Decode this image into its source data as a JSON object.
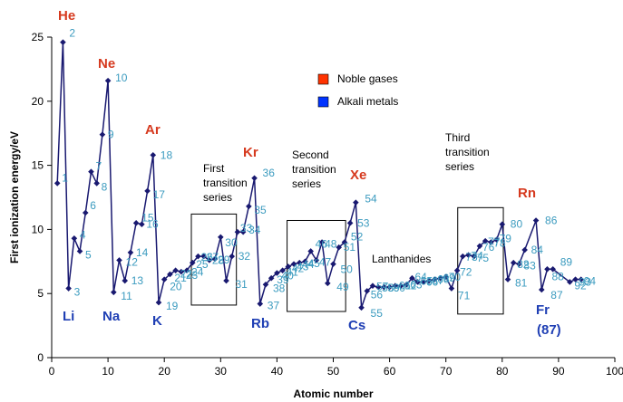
{
  "chart_data": {
    "type": "line",
    "xlabel": "Atomic number",
    "ylabel": "First ionization energy/eV",
    "xlim": [
      0,
      100
    ],
    "ylim": [
      0,
      25
    ],
    "xticks": [
      "0",
      "10",
      "20",
      "30",
      "40",
      "50",
      "60",
      "70",
      "80",
      "90",
      "100"
    ],
    "yticks": [
      "0",
      "5",
      "10",
      "15",
      "20",
      "25"
    ],
    "series": [
      {
        "x": [
          1,
          2,
          3,
          4,
          5,
          6,
          7,
          8,
          9,
          10,
          11,
          12,
          13,
          14,
          15,
          16,
          17,
          18,
          19,
          20,
          21,
          22,
          23,
          24,
          25,
          26,
          27,
          28,
          29,
          30,
          31,
          32,
          33,
          34,
          35,
          36,
          37,
          38,
          39,
          40,
          41,
          42,
          43,
          44,
          45,
          46,
          47,
          48,
          49,
          50,
          51,
          52,
          53,
          54,
          55,
          56,
          57,
          58,
          59,
          60,
          61,
          62,
          63,
          64,
          65,
          66,
          67,
          68,
          69,
          70,
          71,
          72,
          73,
          74,
          75,
          76,
          77,
          78,
          79,
          80,
          81,
          82,
          83,
          84,
          86,
          87,
          88,
          89,
          92,
          93,
          94
        ],
        "y": [
          13.6,
          24.6,
          5.4,
          9.3,
          8.3,
          11.3,
          14.5,
          13.6,
          17.4,
          21.6,
          5.1,
          7.6,
          6.0,
          8.2,
          10.5,
          10.4,
          13.0,
          15.8,
          4.3,
          6.1,
          6.5,
          6.8,
          6.7,
          6.8,
          7.4,
          7.9,
          7.9,
          7.6,
          7.7,
          9.4,
          6.0,
          7.9,
          9.8,
          9.8,
          11.8,
          14.0,
          4.2,
          5.7,
          6.2,
          6.6,
          6.8,
          7.1,
          7.3,
          7.4,
          7.5,
          8.3,
          7.6,
          9.0,
          5.8,
          7.3,
          8.6,
          9.0,
          10.5,
          12.1,
          3.9,
          5.2,
          5.6,
          5.5,
          5.5,
          5.5,
          5.6,
          5.6,
          5.7,
          6.2,
          5.9,
          5.9,
          6.0,
          6.1,
          6.2,
          6.3,
          5.4,
          6.8,
          7.9,
          8.0,
          7.9,
          8.7,
          9.1,
          9.0,
          9.2,
          10.4,
          6.1,
          7.4,
          7.3,
          8.4,
          10.7,
          5.3,
          6.9,
          6.9,
          5.9,
          6.1,
          6.1
        ]
      }
    ],
    "point_labels": [
      "1",
      "2",
      "3",
      "4",
      "5",
      "6",
      "7",
      "8",
      "9",
      "10",
      "11",
      "12",
      "13",
      "14",
      "15",
      "16",
      "17",
      "18",
      "19",
      "20",
      "21",
      "22",
      "23",
      "24",
      "25",
      "26",
      "27",
      "28",
      "29",
      "30",
      "31",
      "32",
      "33",
      "34",
      "35",
      "36",
      "37",
      "38",
      "39",
      "40",
      "41",
      "42",
      "43",
      "44",
      "45",
      "46",
      "47",
      "48",
      "49",
      "50",
      "51",
      "52",
      "53",
      "54",
      "55",
      "56",
      "57",
      "58",
      "59",
      "60",
      "61",
      "62",
      "63",
      "64",
      "65",
      "66",
      "67",
      "68",
      "69",
      "70",
      "71",
      "72",
      "73",
      "74",
      "75",
      "76",
      "77",
      "78",
      "79",
      "80",
      "81",
      "82",
      "83",
      "84",
      "86",
      "87",
      "88",
      "89",
      "92",
      "93",
      "94"
    ],
    "element_labels": [
      {
        "text": "He",
        "group": "noble"
      },
      {
        "text": "Ne",
        "group": "noble"
      },
      {
        "text": "Ar",
        "group": "noble"
      },
      {
        "text": "Kr",
        "group": "noble"
      },
      {
        "text": "Xe",
        "group": "noble"
      },
      {
        "text": "Rn",
        "group": "noble"
      },
      {
        "text": "Li",
        "group": "alkali"
      },
      {
        "text": "Na",
        "group": "alkali"
      },
      {
        "text": "K",
        "group": "alkali"
      },
      {
        "text": "Rb",
        "group": "alkali"
      },
      {
        "text": "Cs",
        "group": "alkali"
      },
      {
        "text": "Fr",
        "group": "alkali"
      },
      {
        "text": "(87)",
        "group": "alkali"
      }
    ],
    "annotations": [
      "First transition series",
      "Second transition series",
      "Third transition series",
      "Lanthanides"
    ],
    "legend": [
      {
        "label": "Noble gases",
        "color": "#ff3300"
      },
      {
        "label": "Alkali metals",
        "color": "#0033ff"
      }
    ],
    "legend_position": "top-center",
    "grid": false,
    "colors": {
      "line": "#191970",
      "marker": "#191970",
      "point_label": "#3b9bbf",
      "noble": "#d63a1f",
      "alkali": "#1f3fb4"
    }
  }
}
